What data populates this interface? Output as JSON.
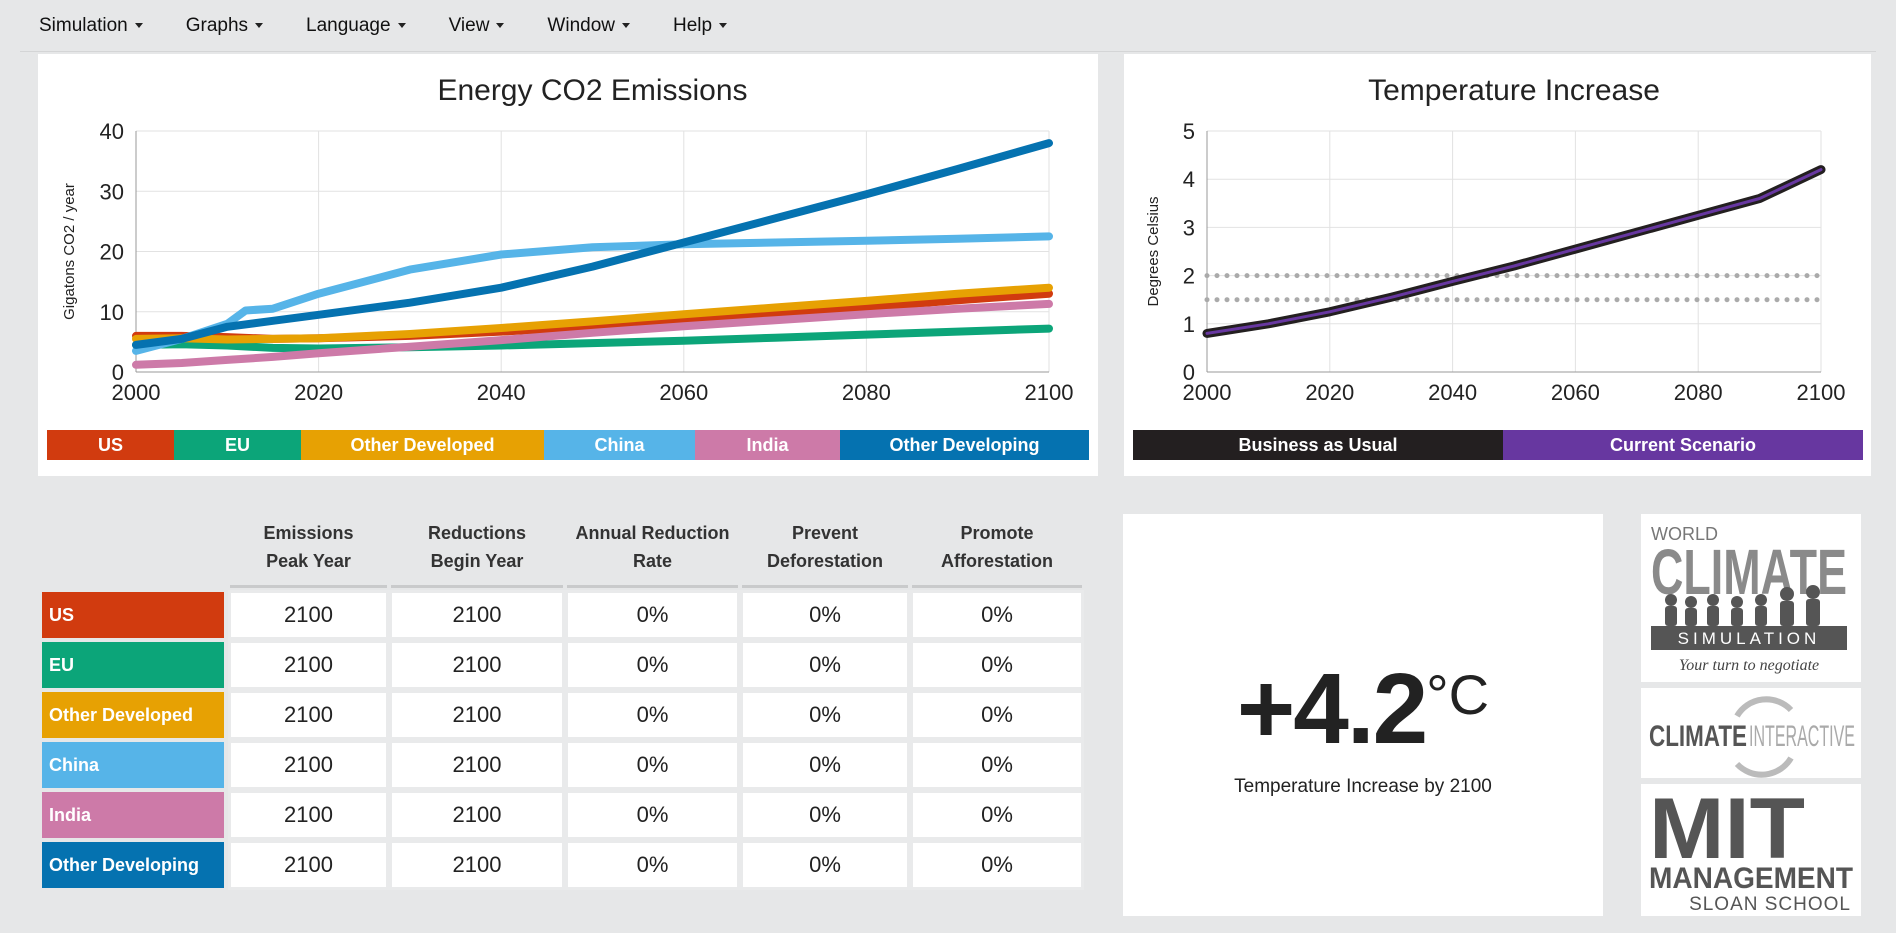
{
  "menu": [
    {
      "label": "Simulation"
    },
    {
      "label": "Graphs"
    },
    {
      "label": "Language"
    },
    {
      "label": "View"
    },
    {
      "label": "Window"
    },
    {
      "label": "Help"
    }
  ],
  "emissions_chart": {
    "title": "Energy CO2 Emissions",
    "ylabel": "Gigatons CO2 / year",
    "legend": [
      {
        "label": "US",
        "color": "#d13b0f"
      },
      {
        "label": "EU",
        "color": "#0ca579"
      },
      {
        "label": "Other Developed",
        "color": "#e7a103"
      },
      {
        "label": "China",
        "color": "#56b4e8"
      },
      {
        "label": "India",
        "color": "#cd7aa8"
      },
      {
        "label": "Other Developing",
        "color": "#0572b0"
      }
    ]
  },
  "temperature_chart": {
    "title": "Temperature Increase",
    "ylabel": "Degrees Celsius",
    "legend": [
      {
        "label": "Business as Usual",
        "color": "#231f20"
      },
      {
        "label": "Current Scenario",
        "color": "#6737a0"
      }
    ]
  },
  "chart_data": [
    {
      "type": "line",
      "title": "Energy CO2 Emissions",
      "xlabel": "",
      "ylabel": "Gigatons CO2 / year",
      "xlim": [
        2000,
        2100
      ],
      "ylim": [
        0,
        40
      ],
      "xticks": [
        2000,
        2020,
        2040,
        2060,
        2080,
        2100
      ],
      "yticks": [
        0,
        10,
        20,
        30,
        40
      ],
      "grid": true,
      "legend_position": "bottom",
      "series": [
        {
          "name": "US",
          "color": "#d13b0f",
          "x": [
            2000,
            2005,
            2010,
            2015,
            2020,
            2030,
            2040,
            2050,
            2060,
            2070,
            2080,
            2090,
            2100
          ],
          "y": [
            6,
            6,
            5.8,
            5.5,
            5.6,
            6.0,
            6.7,
            7.5,
            8.5,
            9.6,
            10.7,
            11.9,
            13
          ]
        },
        {
          "name": "EU",
          "color": "#0ca579",
          "x": [
            2000,
            2005,
            2010,
            2015,
            2020,
            2030,
            2040,
            2050,
            2060,
            2070,
            2080,
            2090,
            2100
          ],
          "y": [
            4.5,
            4.6,
            4.4,
            4.0,
            3.9,
            4.1,
            4.4,
            4.8,
            5.2,
            5.7,
            6.2,
            6.7,
            7.2
          ]
        },
        {
          "name": "Other Developed",
          "color": "#e7a103",
          "x": [
            2000,
            2005,
            2010,
            2015,
            2020,
            2030,
            2040,
            2050,
            2060,
            2070,
            2080,
            2090,
            2100
          ],
          "y": [
            5.5,
            5.6,
            5.4,
            5.5,
            5.6,
            6.3,
            7.3,
            8.4,
            9.6,
            10.7,
            11.8,
            13,
            14
          ]
        },
        {
          "name": "China",
          "color": "#56b4e8",
          "x": [
            2000,
            2005,
            2010,
            2012,
            2015,
            2020,
            2030,
            2040,
            2050,
            2060,
            2070,
            2080,
            2090,
            2100
          ],
          "y": [
            3.5,
            5.5,
            8,
            10.2,
            10.5,
            13,
            17,
            19.5,
            20.7,
            21.2,
            21.5,
            21.8,
            22.1,
            22.5
          ]
        },
        {
          "name": "India",
          "color": "#cd7aa8",
          "x": [
            2000,
            2005,
            2010,
            2015,
            2020,
            2030,
            2040,
            2050,
            2060,
            2070,
            2080,
            2090,
            2100
          ],
          "y": [
            1.2,
            1.5,
            2,
            2.5,
            3.1,
            4.2,
            5.3,
            6.5,
            7.6,
            8.6,
            9.6,
            10.5,
            11.3
          ]
        },
        {
          "name": "Other Developing",
          "color": "#0572b0",
          "x": [
            2000,
            2005,
            2010,
            2015,
            2020,
            2030,
            2040,
            2050,
            2060,
            2070,
            2080,
            2090,
            2100
          ],
          "y": [
            4.5,
            5.5,
            7.5,
            8.5,
            9.5,
            11.5,
            14,
            17.5,
            21.5,
            25.5,
            29.5,
            33.7,
            38
          ]
        }
      ]
    },
    {
      "type": "line",
      "title": "Temperature Increase",
      "xlabel": "",
      "ylabel": "Degrees Celsius",
      "xlim": [
        2000,
        2100
      ],
      "ylim": [
        0,
        5
      ],
      "xticks": [
        2000,
        2020,
        2040,
        2060,
        2080,
        2100
      ],
      "yticks": [
        0,
        1,
        2,
        3,
        4,
        5
      ],
      "grid": true,
      "legend_position": "bottom",
      "reference_lines": [
        2,
        1.5
      ],
      "series": [
        {
          "name": "Business as Usual",
          "color": "#231f20",
          "x": [
            2000,
            2010,
            2020,
            2030,
            2040,
            2050,
            2060,
            2070,
            2080,
            2090,
            2100
          ],
          "y": [
            0.8,
            1.0,
            1.25,
            1.55,
            1.88,
            2.2,
            2.55,
            2.9,
            3.25,
            3.6,
            4.2
          ]
        },
        {
          "name": "Current Scenario",
          "color": "#6737a0",
          "x": [
            2000,
            2010,
            2020,
            2030,
            2040,
            2050,
            2060,
            2070,
            2080,
            2090,
            2100
          ],
          "y": [
            0.8,
            1.0,
            1.25,
            1.55,
            1.88,
            2.2,
            2.55,
            2.9,
            3.25,
            3.6,
            4.2
          ]
        }
      ]
    }
  ],
  "table": {
    "headers": [
      [
        "Emissions",
        "Peak Year"
      ],
      [
        "Reductions",
        "Begin Year"
      ],
      [
        "Annual Reduction",
        "Rate"
      ],
      [
        "Prevent",
        "Deforestation"
      ],
      [
        "Promote",
        "Afforestation"
      ]
    ],
    "rows": [
      {
        "label": "US",
        "color": "#d13b0f",
        "values": [
          "2100",
          "2100",
          "0%",
          "0%",
          "0%"
        ]
      },
      {
        "label": "EU",
        "color": "#0ca579",
        "values": [
          "2100",
          "2100",
          "0%",
          "0%",
          "0%"
        ]
      },
      {
        "label": "Other Developed",
        "color": "#e7a103",
        "values": [
          "2100",
          "2100",
          "0%",
          "0%",
          "0%"
        ]
      },
      {
        "label": "China",
        "color": "#56b4e8",
        "values": [
          "2100",
          "2100",
          "0%",
          "0%",
          "0%"
        ]
      },
      {
        "label": "India",
        "color": "#cd7aa8",
        "values": [
          "2100",
          "2100",
          "0%",
          "0%",
          "0%"
        ]
      },
      {
        "label": "Other Developing",
        "color": "#0572b0",
        "values": [
          "2100",
          "2100",
          "0%",
          "0%",
          "0%"
        ]
      }
    ]
  },
  "result": {
    "value": "+4.2",
    "unit": "°C",
    "caption": "Temperature Increase by 2100"
  },
  "logos": {
    "wcs": {
      "line1": "WORLD",
      "line2": "CLIMATE",
      "line3": "SIMULATION",
      "line4": "Your turn to negotiate"
    },
    "ci": {
      "part1": "CLIMATE",
      "part2": "INTERACTIVE"
    },
    "mit": {
      "line1": "MIT",
      "line2": "MANAGEMENT",
      "line3": "SLOAN SCHOOL"
    }
  }
}
